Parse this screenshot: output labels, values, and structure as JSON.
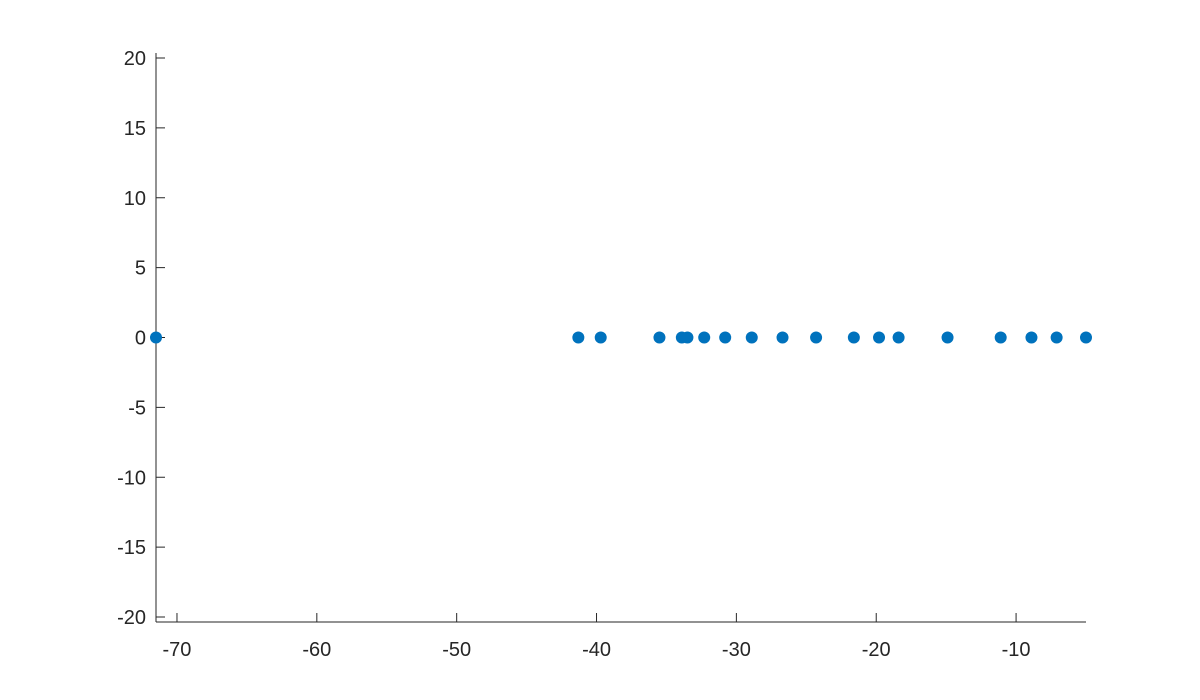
{
  "chart_data": {
    "type": "scatter",
    "title": "",
    "xlabel": "",
    "ylabel": "",
    "xlim": [
      -71.5,
      -5
    ],
    "ylim": [
      -20,
      20
    ],
    "x_ticks": [
      -70,
      -60,
      -50,
      -40,
      -30,
      -20,
      -10
    ],
    "y_ticks": [
      20,
      15,
      10,
      5,
      0,
      -5,
      -10,
      -15,
      -20
    ],
    "grid": false,
    "legend": "none",
    "marker_color": "#0072BD",
    "series": [
      {
        "x": [
          -71.5,
          -41.3,
          -39.7,
          -35.5,
          -33.9,
          -33.5,
          -32.3,
          -30.8,
          -28.9,
          -26.7,
          -24.3,
          -21.6,
          -19.8,
          -18.4,
          -14.9,
          -11.1,
          -8.9,
          -7.1,
          -5.0
        ],
        "y": [
          0,
          0,
          0,
          0,
          0,
          0,
          0,
          0,
          0,
          0,
          0,
          0,
          0,
          0,
          0,
          0,
          0,
          0,
          0
        ]
      }
    ]
  }
}
